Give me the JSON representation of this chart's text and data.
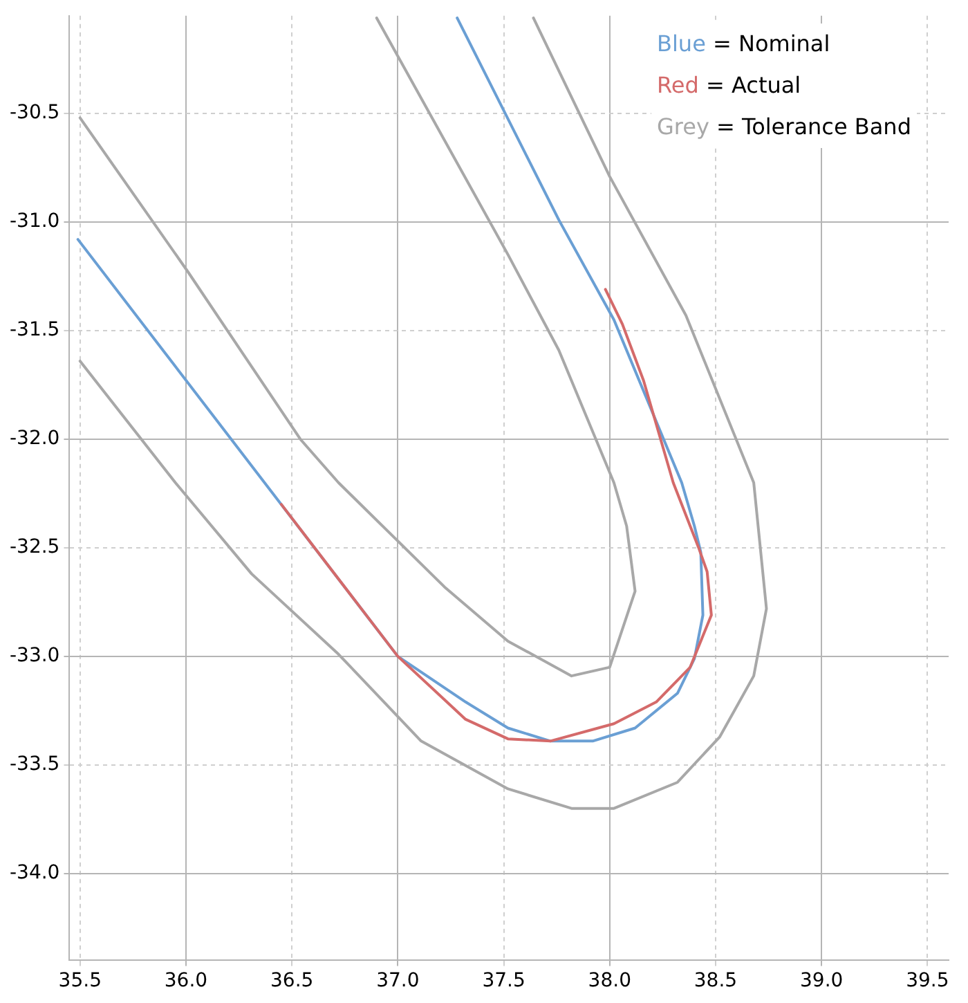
{
  "chart_data": {
    "type": "line",
    "xlim": [
      35.45,
      39.6
    ],
    "ylim": [
      -34.4,
      -30.05
    ],
    "xticks": [
      35.5,
      {
        "value": 36,
        "label": "36.0"
      },
      36.5,
      {
        "value": 37,
        "label": "37.0"
      },
      37.5,
      {
        "value": 38,
        "label": "38.0"
      },
      38.5,
      {
        "value": 39,
        "label": "39.0"
      },
      39.5
    ],
    "yticks": [
      {
        "value": -34,
        "label": "-34.0"
      },
      -33.5,
      {
        "value": -33,
        "label": "-33.0"
      },
      -32.5,
      {
        "value": -32,
        "label": "-32.0"
      },
      -31.5,
      {
        "value": -31,
        "label": "-31.0"
      },
      -30.5
    ],
    "grid": true,
    "legend": "top right",
    "marker": "none",
    "line_style": "solid",
    "series": [
      {
        "name": "Blue = Nominal",
        "color": "#6a9fd4",
        "x": [
          35.49,
          37.0,
          37.32,
          37.52,
          37.72,
          37.92,
          38.12,
          38.32,
          38.4,
          38.44,
          38.43,
          38.4,
          38.34,
          38.02,
          37.76,
          37.28
        ],
        "values": [
          -31.08,
          -33.0,
          -33.21,
          -33.33,
          -33.39,
          -33.39,
          -33.33,
          -33.17,
          -33.01,
          -32.81,
          -32.52,
          -32.4,
          -32.2,
          -31.45,
          -30.99,
          -30.06
        ]
      },
      {
        "name": "Red = Actual",
        "color": "#d46a6a",
        "x": [
          36.45,
          37.0,
          37.32,
          37.52,
          37.72,
          38.02,
          38.22,
          38.38,
          38.48,
          38.46,
          38.42,
          38.3,
          38.16,
          38.06,
          37.98
        ],
        "values": [
          -32.3,
          -33.0,
          -33.29,
          -33.38,
          -33.39,
          -33.31,
          -33.21,
          -33.05,
          -32.81,
          -32.61,
          -32.5,
          -32.2,
          -31.73,
          -31.47,
          -31.31
        ]
      },
      {
        "name": "Grey = Tolerance Band",
        "color": "#a8a8a8",
        "x": [
          35.5,
          36.01,
          36.54,
          36.72,
          37.22,
          37.52,
          37.82,
          38.0,
          38.12,
          38.08,
          38.02,
          37.76,
          37.52,
          36.9
        ],
        "values": [
          -30.52,
          -31.23,
          -32.0,
          -32.2,
          -32.68,
          -32.93,
          -33.09,
          -33.05,
          -32.7,
          -32.4,
          -32.2,
          -31.59,
          -31.15,
          -30.06
        ]
      },
      {
        "color": "#a8a8a8",
        "x": [
          35.5,
          35.95,
          36.31,
          36.72,
          37.11,
          37.52,
          37.82,
          38.02,
          38.32,
          38.52,
          38.68,
          38.74,
          38.68,
          38.36,
          38.0,
          37.64
        ],
        "values": [
          -31.64,
          -32.2,
          -32.62,
          -32.99,
          -33.39,
          -33.61,
          -33.7,
          -33.7,
          -33.58,
          -33.37,
          -33.09,
          -32.78,
          -32.2,
          -31.43,
          -30.79,
          -30.06
        ]
      }
    ]
  }
}
